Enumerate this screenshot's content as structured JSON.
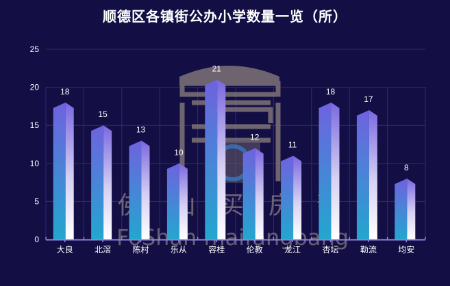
{
  "title": "顺德区各镇街公办小学数量一览（所）",
  "watermark": {
    "chinese_chars": [
      "佛",
      "山",
      "买",
      "房",
      "帮"
    ],
    "english": "FoShan maifangbang",
    "logo": "house-logo-icon"
  },
  "colors": {
    "background": "#130f45",
    "grid": "#2e2a7a",
    "axis": "#8f86e0",
    "bar_left_top": "#6f62df",
    "bar_left_bottom": "#22a7cf",
    "bar_right_top": "#7a68e0",
    "bar_right_bottom": "#ffffff",
    "text": "#ffffff",
    "watermark": "#8a7f86"
  },
  "chart_data": {
    "type": "bar",
    "title": "顺德区各镇街公办小学数量一览（所）",
    "xlabel": "",
    "ylabel": "",
    "categories": [
      "大良",
      "北滘",
      "陈村",
      "乐从",
      "容桂",
      "伦教",
      "龙江",
      "杏坛",
      "勒流",
      "均安"
    ],
    "values": [
      18,
      15,
      13,
      10,
      21,
      12,
      11,
      18,
      17,
      8
    ],
    "ylim": [
      0,
      25
    ],
    "yticks": [
      0,
      5,
      10,
      15,
      20,
      25
    ],
    "grid": true,
    "legend": "none",
    "data_labels": true
  }
}
